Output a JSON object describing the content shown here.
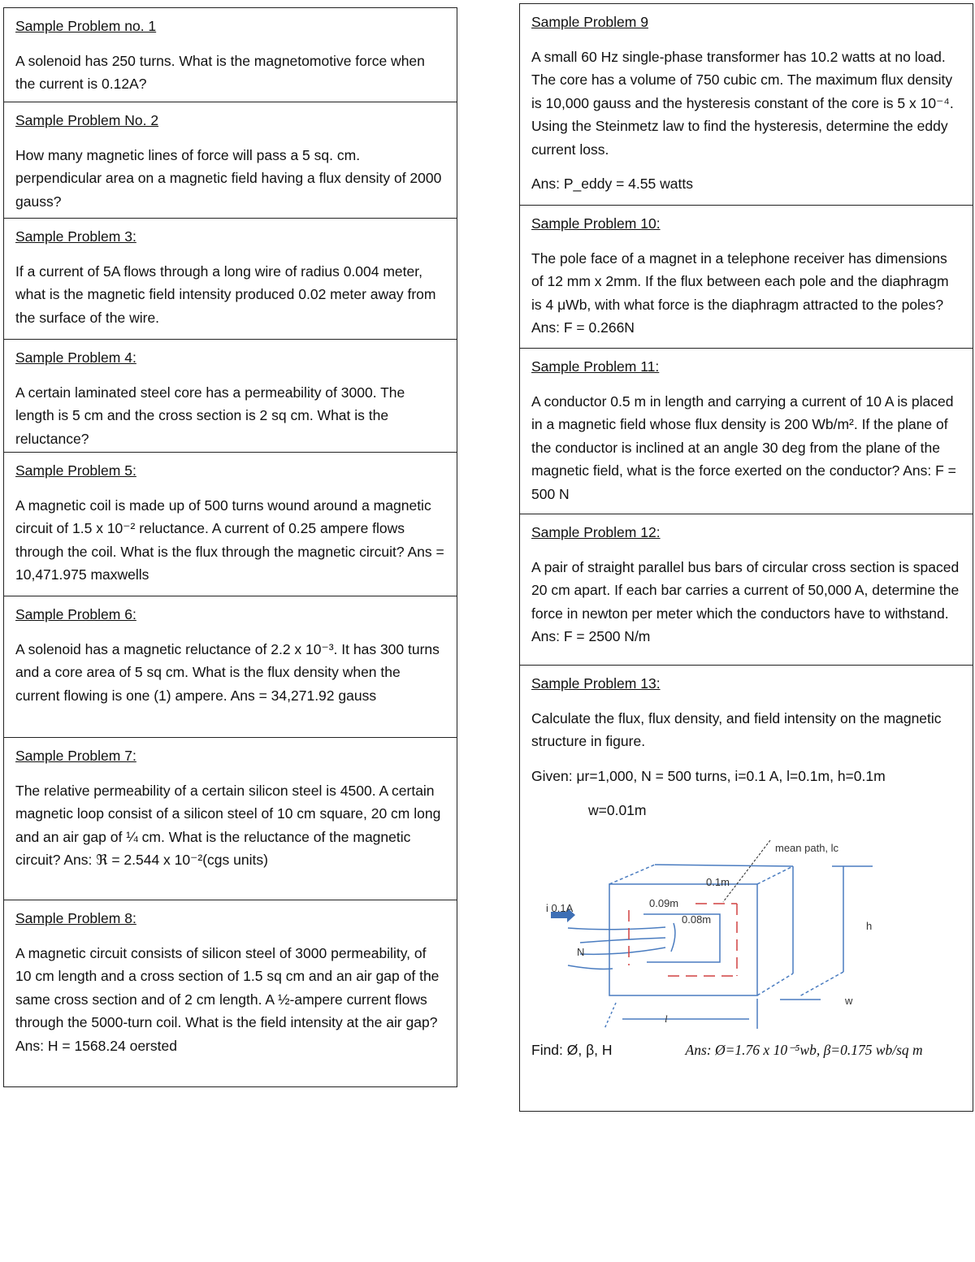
{
  "left": [
    {
      "title": "Sample Problem no. 1",
      "body": "A solenoid has 250 turns. What is the magnetomotive force when the current is 0.12A?"
    },
    {
      "title": "Sample Problem No. 2",
      "body": "How many magnetic lines of force will pass a 5 sq. cm. perpendicular area on a magnetic field having a flux density of 2000 gauss?"
    },
    {
      "title": "Sample Problem 3:",
      "body": "If a current of 5A flows through a long wire of radius 0.004 meter, what is the magnetic field intensity produced 0.02 meter away from the surface of the wire."
    },
    {
      "title": "Sample Problem 4:",
      "body": "A certain laminated steel core has a permeability of 3000. The length is 5 cm and the cross section is 2 sq cm. What is the reluctance?"
    },
    {
      "title": "Sample Problem 5:",
      "body": "A magnetic coil is made up of 500 turns wound around a magnetic circuit of 1.5 x 10⁻² reluctance. A current of 0.25 ampere flows through the coil. What is the flux through the magnetic circuit?   Ans = 10,471.975 maxwells"
    },
    {
      "title": "Sample Problem 6:",
      "body": "A solenoid has a magnetic reluctance of 2.2 x 10⁻³. It has 300 turns and a core area of 5 sq cm. What is the flux density when the current flowing is one (1) ampere. Ans = 34,271.92 gauss"
    },
    {
      "title": "Sample Problem 7:",
      "body": "The relative permeability of a certain silicon steel is 4500. A certain magnetic loop consist of a silicon steel of 10 cm square, 20 cm long and an air gap of ¼ cm. What is the reluctance of the magnetic circuit?   Ans:  ℜ = 2.544 x 10⁻²(cgs units)"
    },
    {
      "title": "Sample Problem 8:",
      "body": "A magnetic circuit consists of silicon steel of 3000 permeability, of 10 cm length and a cross section of 1.5 sq cm and an air gap of the same cross section and of 2 cm length. A ½-ampere current flows through the 5000-turn coil. What is the field intensity at the air gap?  Ans: H = 1568.24 oersted"
    }
  ],
  "right": [
    {
      "title": "Sample Problem 9",
      "body": "A small 60 Hz single-phase transformer has 10.2 watts at no load. The core has a volume of 750 cubic cm. The maximum flux density is 10,000 gauss and the hysteresis constant of the core is 5 x 10⁻⁴. Using the Steinmetz law to find the hysteresis, determine the eddy current loss.",
      "ans": "Ans:  P_eddy = 4.55 watts"
    },
    {
      "title": "Sample Problem 10:",
      "body": "The pole face of a magnet in a telephone receiver has dimensions of 12 mm x 2mm. If the flux between each pole and the diaphragm is 4 μWb,  with what force is the diaphragm attracted to the poles?   Ans:  F = 0.266N"
    },
    {
      "title": "Sample Problem 11:",
      "body": "A conductor 0.5 m in length and carrying a current of 10 A is placed in a magnetic field whose flux density is 200 Wb/m². If the plane of the conductor is inclined at an angle 30 deg from the plane of the magnetic field, what is the force exerted on the conductor?    Ans:   F = 500 N"
    },
    {
      "title": "Sample Problem 12:",
      "body": "A pair of straight parallel bus bars of circular cross section is spaced 20 cm apart. If each bar carries a current of 50,000 A, determine the force in newton per meter which the conductors have to withstand.    Ans:    F = 2500 N/m"
    },
    {
      "title": "Sample Problem 13:",
      "body": "Calculate the flux, flux density, and field intensity on the magnetic structure in figure.",
      "given": "Given: μr=1,000, N = 500 turns, i=0.1 A, l=0.1m, h=0.1m",
      "given2": "w=0.01m",
      "figure": {
        "mean_path": "mean path, lc",
        "current": "i 0.1A",
        "top": "0.1m",
        "outer": "0.09m",
        "inner": "0.08m",
        "turns": "N",
        "h": "h",
        "w": "w",
        "l": "l"
      },
      "find": "Find:  Ø, β, H",
      "ans": "Ans:  Ø=1.76 x 10⁻⁵wb,  β=0.175 wb/sq m"
    }
  ]
}
